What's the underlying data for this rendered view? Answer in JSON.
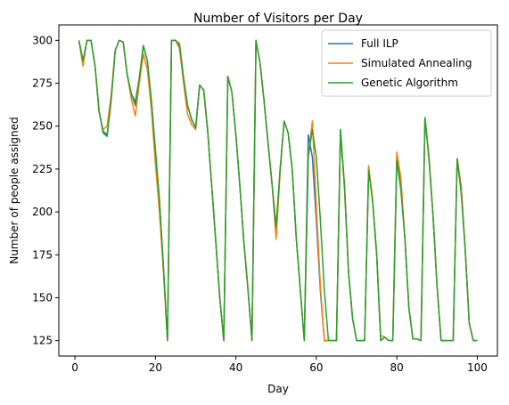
{
  "chart_data": {
    "type": "line",
    "title": "Number of Visitors per Day",
    "xlabel": "Day",
    "ylabel": "Number of people assigned",
    "xlim": [
      -4,
      105
    ],
    "ylim": [
      116,
      309
    ],
    "xticks": [
      0,
      20,
      40,
      60,
      80,
      100
    ],
    "yticks": [
      125,
      150,
      175,
      200,
      225,
      250,
      275,
      300
    ],
    "legend_position": "top-right",
    "grid": false,
    "x": [
      1,
      2,
      3,
      4,
      5,
      6,
      7,
      8,
      9,
      10,
      11,
      12,
      13,
      14,
      15,
      16,
      17,
      18,
      19,
      20,
      21,
      22,
      23,
      24,
      25,
      26,
      27,
      28,
      29,
      30,
      31,
      32,
      33,
      34,
      35,
      36,
      37,
      38,
      39,
      40,
      41,
      42,
      43,
      44,
      45,
      46,
      47,
      48,
      49,
      50,
      51,
      52,
      53,
      54,
      55,
      56,
      57,
      58,
      59,
      60,
      61,
      62,
      63,
      64,
      65,
      66,
      67,
      68,
      69,
      70,
      71,
      72,
      73,
      74,
      75,
      76,
      77,
      78,
      79,
      80,
      81,
      82,
      83,
      84,
      85,
      86,
      87,
      88,
      89,
      90,
      91,
      92,
      93,
      94,
      95,
      96,
      97,
      98,
      99,
      100
    ],
    "series": [
      {
        "name": "Full ILP",
        "color": "#1f77b4",
        "values": [
          300,
          288,
          300,
          300,
          285,
          259,
          247,
          245,
          265,
          294,
          300,
          299,
          280,
          269,
          264,
          278,
          297,
          288,
          265,
          236,
          207,
          168,
          125,
          300,
          300,
          297,
          278,
          262,
          254,
          249,
          274,
          271,
          247,
          215,
          183,
          150,
          125,
          279,
          270,
          245,
          215,
          182,
          155,
          125,
          300,
          287,
          265,
          240,
          216,
          191,
          225,
          253,
          246,
          225,
          185,
          155,
          125,
          245,
          232,
          195,
          154,
          125,
          125,
          125,
          125,
          248,
          215,
          165,
          138,
          125,
          125,
          125,
          226,
          206,
          175,
          125,
          127,
          125,
          125,
          233,
          215,
          185,
          144,
          126,
          126,
          125,
          255,
          232,
          198,
          157,
          125,
          125,
          125,
          125,
          231,
          215,
          178,
          135,
          125,
          125
        ]
      },
      {
        "name": "Simulated Annealing",
        "color": "#ff7f0e",
        "values": [
          300,
          285,
          300,
          300,
          285,
          258,
          248,
          250,
          268,
          294,
          300,
          299,
          280,
          266,
          256,
          275,
          292,
          283,
          260,
          228,
          200,
          165,
          125,
          300,
          300,
          295,
          275,
          257,
          251,
          248,
          274,
          271,
          248,
          215,
          183,
          150,
          125,
          279,
          270,
          245,
          215,
          182,
          155,
          125,
          300,
          287,
          265,
          240,
          216,
          184,
          223,
          253,
          246,
          225,
          185,
          155,
          125,
          232,
          253,
          203,
          157,
          125,
          125,
          125,
          125,
          246,
          213,
          165,
          138,
          125,
          125,
          125,
          227,
          207,
          175,
          128,
          127,
          125,
          125,
          235,
          220,
          185,
          144,
          126,
          126,
          125,
          255,
          232,
          198,
          157,
          125,
          125,
          125,
          125,
          231,
          215,
          178,
          135,
          125,
          125
        ]
      },
      {
        "name": "Genetic Algorithm",
        "color": "#2ca02c",
        "values": [
          300,
          288,
          300,
          300,
          285,
          259,
          246,
          244,
          265,
          294,
          300,
          299,
          280,
          269,
          262,
          278,
          297,
          288,
          265,
          236,
          207,
          168,
          125,
          300,
          300,
          298,
          278,
          262,
          254,
          249,
          274,
          271,
          247,
          215,
          183,
          150,
          125,
          279,
          270,
          245,
          215,
          182,
          155,
          125,
          300,
          287,
          265,
          240,
          216,
          191,
          225,
          253,
          246,
          225,
          185,
          155,
          125,
          232,
          248,
          232,
          195,
          154,
          125,
          125,
          125,
          248,
          215,
          165,
          138,
          125,
          125,
          125,
          224,
          206,
          175,
          125,
          127,
          125,
          125,
          230,
          213,
          185,
          144,
          126,
          126,
          125,
          255,
          230,
          198,
          157,
          125,
          125,
          125,
          125,
          231,
          211,
          178,
          135,
          125,
          125
        ]
      }
    ]
  }
}
